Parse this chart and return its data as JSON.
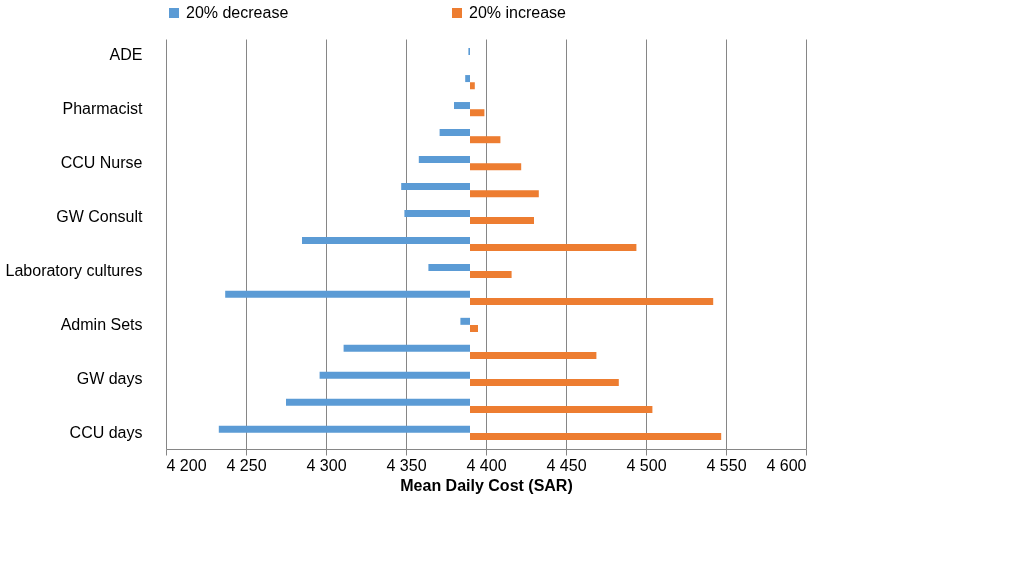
{
  "chart_data": {
    "type": "bar",
    "orientation": "horizontal",
    "xlabel": "Mean Daily Cost (SAR)",
    "categories": [
      "ADE",
      null,
      "Pharmacist",
      null,
      "CCU Nurse",
      null,
      "GW Consult",
      null,
      "Laboratory cultures",
      null,
      "Admin Sets",
      null,
      "GW days",
      null,
      "CCU days"
    ],
    "series": [
      {
        "name": "20% decrease",
        "color": "#5b9bd5",
        "base": [
          4390,
          4390,
          4390,
          4390,
          4390,
          4390,
          4390,
          4390,
          4390,
          4390,
          4390,
          4390,
          4390,
          4390,
          4390
        ],
        "values": [
          -1,
          -3,
          -10,
          -19,
          -32,
          -43,
          -41,
          -105,
          -26,
          -153,
          -6,
          -79,
          -94,
          -115,
          -157
        ]
      },
      {
        "name": "20% increase",
        "color": "#ed7d31",
        "base": [
          null,
          4390,
          4390,
          4390,
          4390,
          4390,
          4390,
          4390,
          4390,
          4390,
          4390,
          4390,
          4390,
          4390,
          4390
        ],
        "values": [
          null,
          3,
          9,
          19,
          32,
          43,
          40,
          104,
          26,
          152,
          5,
          79,
          93,
          114,
          157
        ]
      }
    ],
    "xlim": [
      4200,
      4600
    ],
    "xticks": [
      {
        "value": 4200,
        "label": "4 200"
      },
      {
        "value": 4250,
        "label": "4 250"
      },
      {
        "value": 4300,
        "label": "4 300"
      },
      {
        "value": 4350,
        "label": "4 350"
      },
      {
        "value": 4400,
        "label": "4 400"
      },
      {
        "value": 4450,
        "label": "4 450"
      },
      {
        "value": 4500,
        "label": "4 500"
      },
      {
        "value": 4550,
        "label": "4 550"
      },
      {
        "value": 4600,
        "label": "4 600"
      }
    ],
    "grid": "x",
    "legend": "top"
  }
}
